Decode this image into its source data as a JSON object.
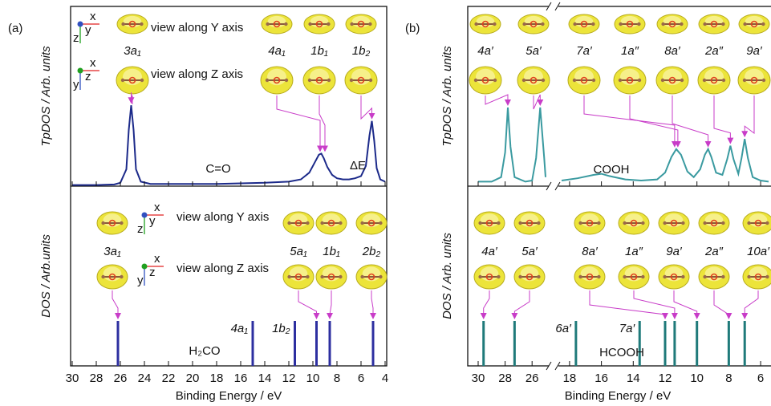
{
  "chart_data": [
    {
      "type": "line",
      "panel_label": "(a)",
      "ylabel": "TpDOS / Arb. units",
      "color": "#1c2a8a",
      "xlim": [
        30,
        4
      ],
      "ylim": [
        0,
        16
      ],
      "x": [
        30,
        28,
        26.5,
        26,
        25.5,
        25.3,
        25.1,
        24.9,
        24.7,
        24.3,
        23.5,
        22,
        20,
        18,
        16,
        14,
        12,
        11,
        10.3,
        9.8,
        9.5,
        9.3,
        9.1,
        8.8,
        8.4,
        8,
        7.5,
        7,
        6.5,
        6,
        5.6,
        5.3,
        5.1,
        4.9,
        4.7,
        4.4,
        4
      ],
      "values": [
        0.1,
        0.1,
        0.15,
        0.3,
        1.5,
        5,
        7.2,
        5,
        1.5,
        0.4,
        0.2,
        0.2,
        0.2,
        0.2,
        0.25,
        0.3,
        0.4,
        0.6,
        1.2,
        2.2,
        2.8,
        2.9,
        2.5,
        1.7,
        1.0,
        0.7,
        0.6,
        0.6,
        0.7,
        0.9,
        1.8,
        4.5,
        5.8,
        4.0,
        1.6,
        0.6,
        0.4
      ],
      "annotations": [
        "C=O",
        "ΔE"
      ],
      "view_labels": [
        {
          "text": "view along Y axis",
          "axes": [
            "x",
            "z",
            "y"
          ]
        },
        {
          "text": "view along Z axis",
          "axes": [
            "x",
            "y",
            "z"
          ]
        }
      ],
      "orbitals": [
        {
          "label": "3a₁",
          "energy": 25.1
        },
        {
          "label": "4a₁",
          "energy": 9.4
        },
        {
          "label": "1b₁",
          "energy": 9.0
        },
        {
          "label": "1b₂",
          "energy": 5.1
        }
      ]
    },
    {
      "type": "stick",
      "ylabel": "DOS / Arb.units",
      "xlabel": "Binding Energy / eV",
      "color": "#2d2fa0",
      "xlim": [
        30,
        4
      ],
      "xticks": [
        30,
        28,
        26,
        24,
        22,
        20,
        18,
        16,
        14,
        12,
        10,
        8,
        6,
        4
      ],
      "ylim": [
        0,
        4
      ],
      "x": [
        26.2,
        15.0,
        11.5,
        9.7,
        8.6,
        5.0
      ],
      "values": [
        1,
        1,
        1,
        1,
        1,
        1
      ],
      "stick_labels": [
        null,
        "4a₁",
        "1b₂",
        null,
        null,
        null
      ],
      "molecule": "H₂CO",
      "view_labels": [
        {
          "text": "view along Y axis",
          "axes": [
            "x",
            "z",
            "y"
          ]
        },
        {
          "text": "view along Z axis",
          "axes": [
            "x",
            "y",
            "z"
          ]
        }
      ],
      "orbitals": [
        {
          "label": "3a₁",
          "energy": 26.2
        },
        {
          "label": "5a₁",
          "energy": 9.7
        },
        {
          "label": "1b₁",
          "energy": 8.6
        },
        {
          "label": "2b₂",
          "energy": 5.0
        }
      ]
    },
    {
      "type": "line",
      "panel_label": "(b)",
      "ylabel": "TpDOS / Arb. units",
      "color": "#3a9aa0",
      "xlim": [
        30,
        5.5
      ],
      "x_break": [
        25,
        18.5
      ],
      "ylim": [
        0,
        16
      ],
      "x": [
        30,
        29,
        28.3,
        28,
        27.8,
        27.6,
        27.3,
        26.5,
        26,
        25.7,
        25.4,
        25.1,
        25,
        null,
        18.5,
        17.5,
        16.5,
        16,
        15.5,
        14.5,
        13.5,
        12.5,
        12,
        11.6,
        11.3,
        11,
        10.6,
        10.2,
        9.8,
        9.5,
        9.3,
        9.1,
        8.8,
        8.4,
        8.1,
        7.9,
        7.7,
        7.4,
        7.2,
        7.0,
        6.8,
        6.5,
        6,
        5.5
      ],
      "values": [
        0.4,
        0.4,
        0.8,
        3,
        7.0,
        3.5,
        0.8,
        0.4,
        0.5,
        2.5,
        7.0,
        2.5,
        0.8,
        null,
        0.5,
        0.7,
        1.0,
        1.1,
        0.9,
        0.6,
        0.5,
        0.6,
        1.2,
        2.6,
        3.3,
        2.8,
        1.3,
        0.8,
        1.5,
        2.8,
        3.3,
        2.6,
        1.2,
        1.0,
        2.4,
        3.6,
        2.4,
        1.1,
        2.5,
        4.2,
        2.5,
        0.8,
        0.5,
        0.4
      ],
      "annotations": [
        "COOH"
      ],
      "orbitals": [
        {
          "label": "4a′",
          "energy": 27.8
        },
        {
          "label": "5a′",
          "energy": 25.4
        },
        {
          "label": "7a′",
          "energy": 11.4
        },
        {
          "label": "1a″",
          "energy": 11.2
        },
        {
          "label": "8a′",
          "energy": 9.3
        },
        {
          "label": "2a″",
          "energy": 7.9
        },
        {
          "label": "9a′",
          "energy": 7.0
        }
      ]
    },
    {
      "type": "stick",
      "ylabel": "DOS / Arb. units",
      "xlabel": "Binding Energy / eV",
      "color": "#1f7a7a",
      "xlim": [
        30,
        5.5
      ],
      "x_break": [
        25,
        18.5
      ],
      "xticks": [
        30,
        28,
        26,
        18,
        16,
        14,
        12,
        10,
        8,
        6
      ],
      "ylim": [
        0,
        4
      ],
      "x": [
        29.6,
        27.3,
        17.6,
        13.6,
        12.0,
        11.4,
        10.0,
        8.0,
        7.0
      ],
      "values": [
        1,
        1,
        1,
        1,
        1,
        1,
        1,
        1,
        1
      ],
      "stick_labels": [
        null,
        null,
        "6a′",
        "7a′",
        null,
        null,
        null,
        null,
        null
      ],
      "molecule": "HCOOH",
      "orbitals": [
        {
          "label": "4a′",
          "energy": 29.6
        },
        {
          "label": "5a′",
          "energy": 27.3
        },
        {
          "label": "8a′",
          "energy": 12.0
        },
        {
          "label": "1a″",
          "energy": 11.4
        },
        {
          "label": "9a′",
          "energy": 10.0
        },
        {
          "label": "2a″",
          "energy": 8.0
        },
        {
          "label": "10a′",
          "energy": 7.0
        }
      ]
    }
  ]
}
